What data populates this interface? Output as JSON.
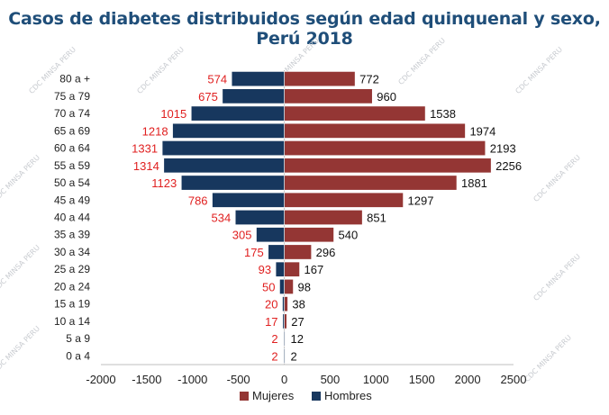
{
  "chart_data": {
    "type": "bar",
    "orientation": "horizontal",
    "title": "Casos de diabetes distribuidos según edad quinquenal y sexo, Perú 2018",
    "categories": [
      "0 a 4",
      "5 a 9",
      "10 a 14",
      "15 a 19",
      "20 a 24",
      "25 a 29",
      "30 a 34",
      "35 a 39",
      "40 a 44",
      "45 a 49",
      "50 a 54",
      "55 a 59",
      "60 a 64",
      "65 a 69",
      "70 a 74",
      "75 a 79",
      "80 a +"
    ],
    "series": [
      {
        "name": "Mujeres",
        "color": "#943634",
        "values": [
          2,
          12,
          27,
          38,
          98,
          167,
          296,
          540,
          851,
          1297,
          1881,
          2256,
          2193,
          1974,
          1538,
          960,
          772
        ]
      },
      {
        "name": "Hombres",
        "color": "#17375e",
        "values": [
          -2,
          -2,
          -17,
          -20,
          -50,
          -93,
          -175,
          -305,
          -534,
          -786,
          -1123,
          -1314,
          -1331,
          -1218,
          -1015,
          -675,
          -574
        ]
      }
    ],
    "xlim": [
      -2000,
      2500
    ],
    "xticks": [
      "-2000",
      "-1500",
      "-1000",
      "-500",
      "0",
      "500",
      "1000",
      "1500",
      "2000",
      "2500"
    ],
    "legend": "bottom",
    "hombres_label_color": "#e02020",
    "mujeres_label_color": "#111111"
  },
  "watermark": "CDC MINSA PERU"
}
